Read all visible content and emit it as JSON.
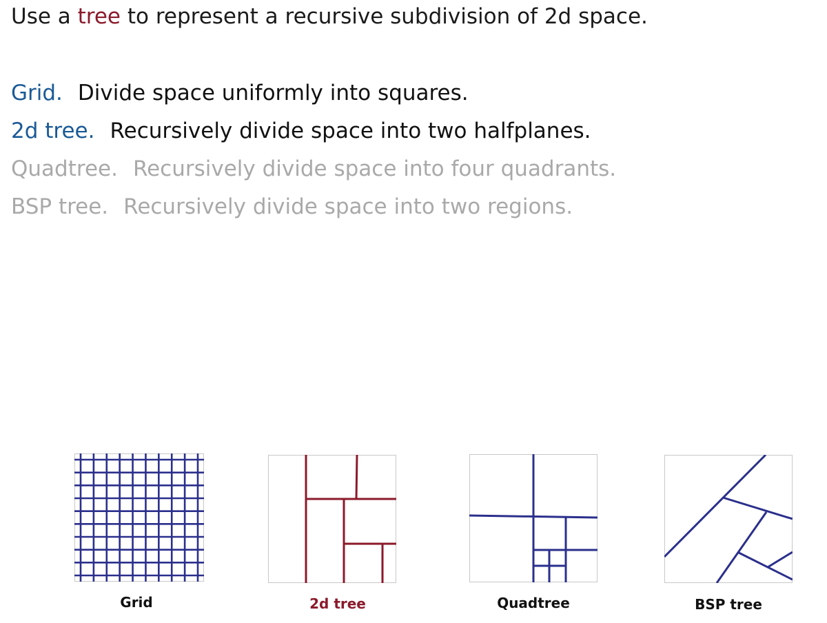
{
  "intro": {
    "before": "Use a",
    "highlight": "tree",
    "after": "to represent a recursive subdivision of 2d space."
  },
  "definitions": [
    {
      "term": "Grid.",
      "description": "Divide space uniformly into squares.",
      "state": "active"
    },
    {
      "term": "2d tree.",
      "description": "Recursively divide space into two halfplanes.",
      "state": "active"
    },
    {
      "term": "Quadtree.",
      "description": "Recursively divide space into four quadrants.",
      "state": "dim"
    },
    {
      "term": "BSP tree.",
      "description": "Recursively divide space into two regions.",
      "state": "dim"
    }
  ],
  "figures": [
    {
      "caption": "Grid"
    },
    {
      "caption": "2d tree"
    },
    {
      "caption": "Quadtree"
    },
    {
      "caption": "BSP tree"
    }
  ],
  "colors": {
    "term_blue": "#1a5a96",
    "tree_red": "#8b1a2b",
    "line_blue": "#2a2f8c",
    "dim_gray": "#a9a9a9"
  }
}
